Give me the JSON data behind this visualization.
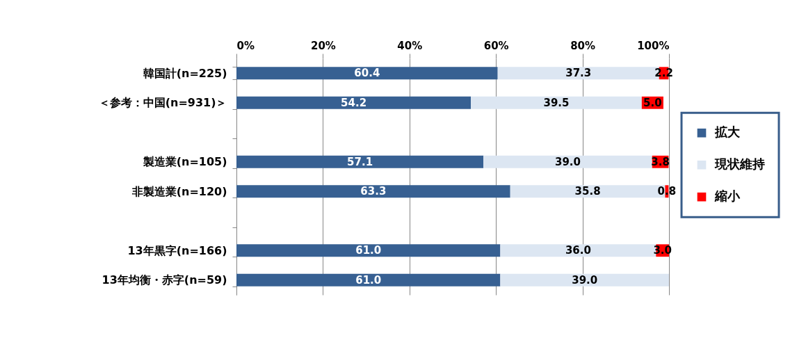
{
  "chart_data": {
    "type": "bar",
    "orientation": "horizontal",
    "stacked": true,
    "categories": [
      "韓国計(n=225)",
      "＜参考：中国(n=931)＞",
      null,
      "製造業(n=105)",
      "非製造業(n=120)",
      null,
      "13年黒字(n=166)",
      "13年均衡・赤字(n=59)"
    ],
    "series": [
      {
        "name": "拡大",
        "color": "#376092",
        "values": [
          60.4,
          54.2,
          null,
          57.1,
          63.3,
          null,
          61.0,
          61.0
        ],
        "value_labels": [
          "60.4",
          "54.2",
          null,
          "57.1",
          "63.3",
          null,
          "61.0",
          "61.0"
        ]
      },
      {
        "name": "現状維持",
        "color": "#dce6f2",
        "values": [
          37.3,
          39.5,
          null,
          39.0,
          35.8,
          null,
          36.0,
          39.0
        ],
        "value_labels": [
          "37.3",
          "39.5",
          null,
          "39.0",
          "35.8",
          null,
          "36.0",
          "39.0"
        ]
      },
      {
        "name": "縮小",
        "color": "#ff0000",
        "values": [
          2.2,
          5.0,
          null,
          3.8,
          0.8,
          null,
          3.0,
          null
        ],
        "value_labels": [
          "2.2",
          "5.0",
          null,
          "3.8",
          "0.8",
          null,
          "3.0",
          null
        ]
      }
    ],
    "xlim": [
      0,
      100
    ],
    "xticks": [
      {
        "value": 0,
        "label": "0%"
      },
      {
        "value": 20,
        "label": "20%"
      },
      {
        "value": 40,
        "label": "40%"
      },
      {
        "value": 60,
        "label": "60%"
      },
      {
        "value": 80,
        "label": "80%"
      },
      {
        "value": 100,
        "label": "100%"
      }
    ],
    "grid": "x",
    "legend": "right"
  }
}
